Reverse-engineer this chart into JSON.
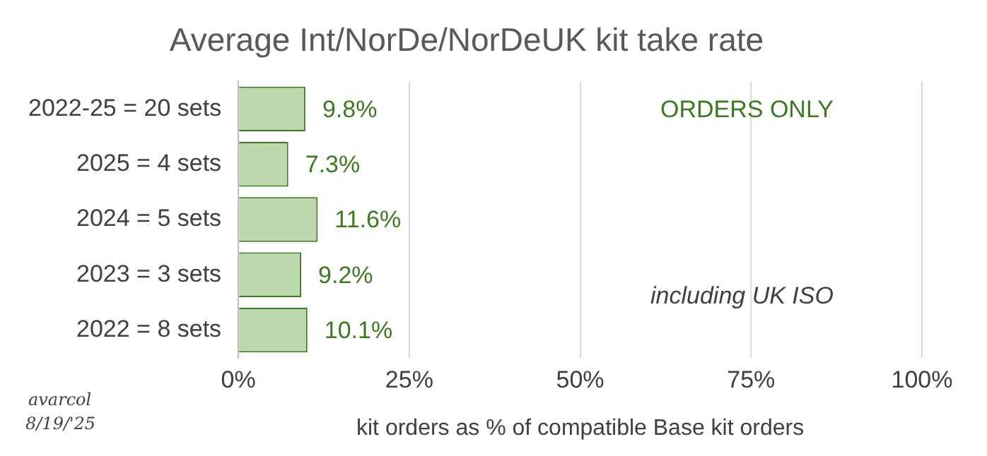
{
  "chart_data": {
    "type": "bar",
    "orientation": "horizontal",
    "title": "Average Int/NorDe/NorDeUK kit take rate",
    "xlabel": "kit orders as % of compatible Base kit orders",
    "categories": [
      "2022-25 = 20 sets",
      "2025 = 4 sets",
      "2024 = 5 sets",
      "2023 = 3 sets",
      "2022 = 8 sets"
    ],
    "values": [
      9.8,
      7.3,
      11.6,
      9.2,
      10.1
    ],
    "value_labels": [
      "9.8%",
      "7.3%",
      "11.6%",
      "9.2%",
      "10.1%"
    ],
    "color": "#bdd7ae",
    "xlim": [
      0,
      100
    ],
    "xticks": [
      {
        "value": 0,
        "label": "0%"
      },
      {
        "value": 25,
        "label": "25%"
      },
      {
        "value": 50,
        "label": "50%"
      },
      {
        "value": 75,
        "label": "75%"
      },
      {
        "value": 100,
        "label": "100%"
      }
    ],
    "grid": "x",
    "annotations": [
      "ORDERS ONLY",
      "including UK ISO",
      "avarcol",
      "8/19/'25"
    ]
  }
}
